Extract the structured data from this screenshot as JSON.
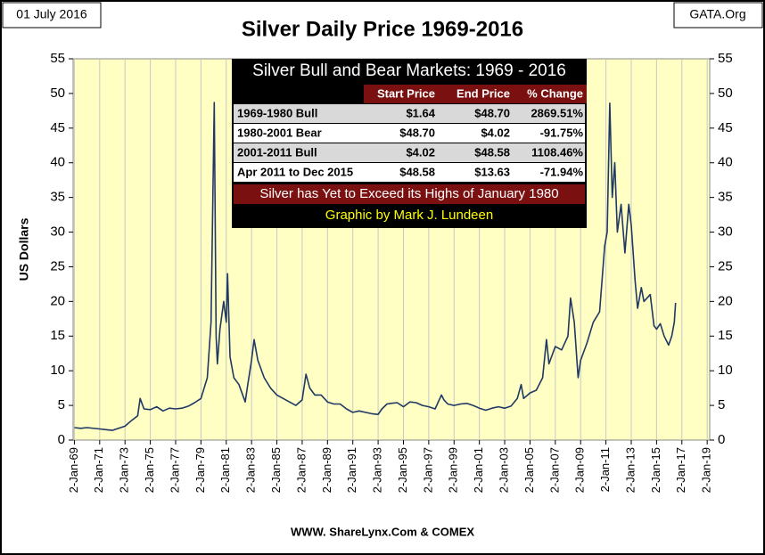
{
  "chart_data": {
    "type": "line",
    "title": "Silver Daily Price 1969-2016",
    "date_label": "01 July 2016",
    "site_label": "GATA.Org",
    "source": "WWW. ShareLynx.Com & COMEX",
    "y_label": "US Dollars",
    "color": "#1f3864",
    "grid": true,
    "xlim": [
      1968.9,
      2019.2
    ],
    "xticks": [
      {
        "value": 1969,
        "label": "2-Jan-69"
      },
      {
        "value": 1971,
        "label": "2-Jan-71"
      },
      {
        "value": 1973,
        "label": "2-Jan-73"
      },
      {
        "value": 1975,
        "label": "2-Jan-75"
      },
      {
        "value": 1977,
        "label": "2-Jan-77"
      },
      {
        "value": 1979,
        "label": "2-Jan-79"
      },
      {
        "value": 1981,
        "label": "2-Jan-81"
      },
      {
        "value": 1983,
        "label": "2-Jan-83"
      },
      {
        "value": 1985,
        "label": "2-Jan-85"
      },
      {
        "value": 1987,
        "label": "2-Jan-87"
      },
      {
        "value": 1989,
        "label": "2-Jan-89"
      },
      {
        "value": 1991,
        "label": "2-Jan-91"
      },
      {
        "value": 1993,
        "label": "2-Jan-93"
      },
      {
        "value": 1995,
        "label": "2-Jan-95"
      },
      {
        "value": 1997,
        "label": "2-Jan-97"
      },
      {
        "value": 1999,
        "label": "2-Jan-99"
      },
      {
        "value": 2001,
        "label": "2-Jan-01"
      },
      {
        "value": 2003,
        "label": "2-Jan-03"
      },
      {
        "value": 2005,
        "label": "2-Jan-05"
      },
      {
        "value": 2007,
        "label": "2-Jan-07"
      },
      {
        "value": 2009,
        "label": "2-Jan-09"
      },
      {
        "value": 2011,
        "label": "2-Jan-11"
      },
      {
        "value": 2013,
        "label": "2-Jan-13"
      },
      {
        "value": 2015,
        "label": "2-Jan-15"
      },
      {
        "value": 2017,
        "label": "2-Jan-17"
      },
      {
        "value": 2019,
        "label": "2-Jan-19"
      }
    ],
    "ylim": [
      0,
      55
    ],
    "yticks": [
      0,
      5,
      10,
      15,
      20,
      25,
      30,
      35,
      40,
      45,
      50,
      55
    ],
    "x": [
      1969.0,
      1969.5,
      1970,
      1971,
      1971.5,
      1972,
      1972.5,
      1973,
      1973.5,
      1974,
      1974.2,
      1974.5,
      1975,
      1975.5,
      1976,
      1976.5,
      1977,
      1977.5,
      1978,
      1978.5,
      1979,
      1979.5,
      1979.8,
      1980.05,
      1980.2,
      1980.3,
      1980.5,
      1980.8,
      1981,
      1981.1,
      1981.3,
      1981.6,
      1982,
      1982.5,
      1982.7,
      1983,
      1983.2,
      1983.5,
      1984,
      1984.5,
      1985,
      1985.5,
      1986,
      1986.5,
      1987,
      1987.3,
      1987.6,
      1988,
      1988.5,
      1989,
      1989.5,
      1990,
      1990.5,
      1991,
      1991.5,
      1992,
      1992.5,
      1993,
      1993.3,
      1993.7,
      1994,
      1994.5,
      1995,
      1995.5,
      1996,
      1996.5,
      1997,
      1997.5,
      1998,
      1998.2,
      1998.5,
      1999,
      1999.5,
      2000,
      2000.5,
      2001,
      2001.5,
      2002,
      2002.5,
      2003,
      2003.5,
      2004,
      2004.3,
      2004.5,
      2005,
      2005.5,
      2006,
      2006.3,
      2006.5,
      2007,
      2007.5,
      2008,
      2008.2,
      2008.5,
      2008.8,
      2009,
      2009.5,
      2010,
      2010.5,
      2010.9,
      2011.1,
      2011.3,
      2011.5,
      2011.7,
      2011.9,
      2012.2,
      2012.5,
      2012.8,
      2013,
      2013.3,
      2013.5,
      2013.8,
      2014,
      2014.5,
      2014.8,
      2015,
      2015.3,
      2015.6,
      2015.95,
      2016.2,
      2016.4,
      2016.5
    ],
    "values": [
      1.8,
      1.7,
      1.8,
      1.6,
      1.5,
      1.4,
      1.7,
      2.0,
      2.8,
      3.5,
      6.0,
      4.5,
      4.4,
      4.8,
      4.2,
      4.6,
      4.5,
      4.6,
      4.9,
      5.4,
      6.0,
      9.0,
      17.0,
      48.7,
      15,
      11,
      16,
      20,
      17,
      24,
      12,
      9.0,
      8.0,
      5.5,
      8.0,
      11.5,
      14.5,
      11.5,
      9.0,
      7.5,
      6.5,
      6.0,
      5.5,
      5.0,
      5.8,
      9.5,
      7.5,
      6.5,
      6.5,
      5.5,
      5.2,
      5.2,
      4.5,
      4.0,
      4.2,
      4.0,
      3.8,
      3.7,
      4.5,
      5.2,
      5.3,
      5.4,
      4.8,
      5.5,
      5.4,
      5.0,
      4.8,
      4.5,
      6.5,
      5.8,
      5.2,
      5.0,
      5.2,
      5.3,
      5.0,
      4.6,
      4.3,
      4.6,
      4.8,
      4.6,
      4.9,
      6.0,
      8.0,
      6.0,
      6.8,
      7.2,
      9.0,
      14.5,
      11,
      13.5,
      13,
      15,
      20.5,
      17,
      9.0,
      11.5,
      14,
      17,
      18.5,
      28,
      30,
      48.6,
      35,
      40,
      30,
      34,
      27,
      34,
      31,
      23,
      19,
      22,
      20,
      21,
      16.5,
      16,
      16.8,
      15,
      13.7,
      15,
      17,
      19.8
    ],
    "info_table": {
      "title": "Silver Bull and Bear Markets: 1969 - 2016",
      "columns": [
        "Start Price",
        "End Price",
        "% Change"
      ],
      "rows": [
        [
          "1969-1980 Bull",
          "$1.64",
          "$48.70",
          "2869.51%"
        ],
        [
          "1980-2001 Bear",
          "$48.70",
          "$4.02",
          "-91.75%"
        ],
        [
          "2001-2011 Bull",
          "$4.02",
          "$48.58",
          "1108.46%"
        ],
        [
          "Apr 2011 to Dec 2015",
          "$48.58",
          "$13.63",
          "-71.94%"
        ]
      ],
      "note": "Silver has Yet to Exceed its Highs of January 1980",
      "credit": "Graphic by Mark J. Lundeen"
    }
  }
}
